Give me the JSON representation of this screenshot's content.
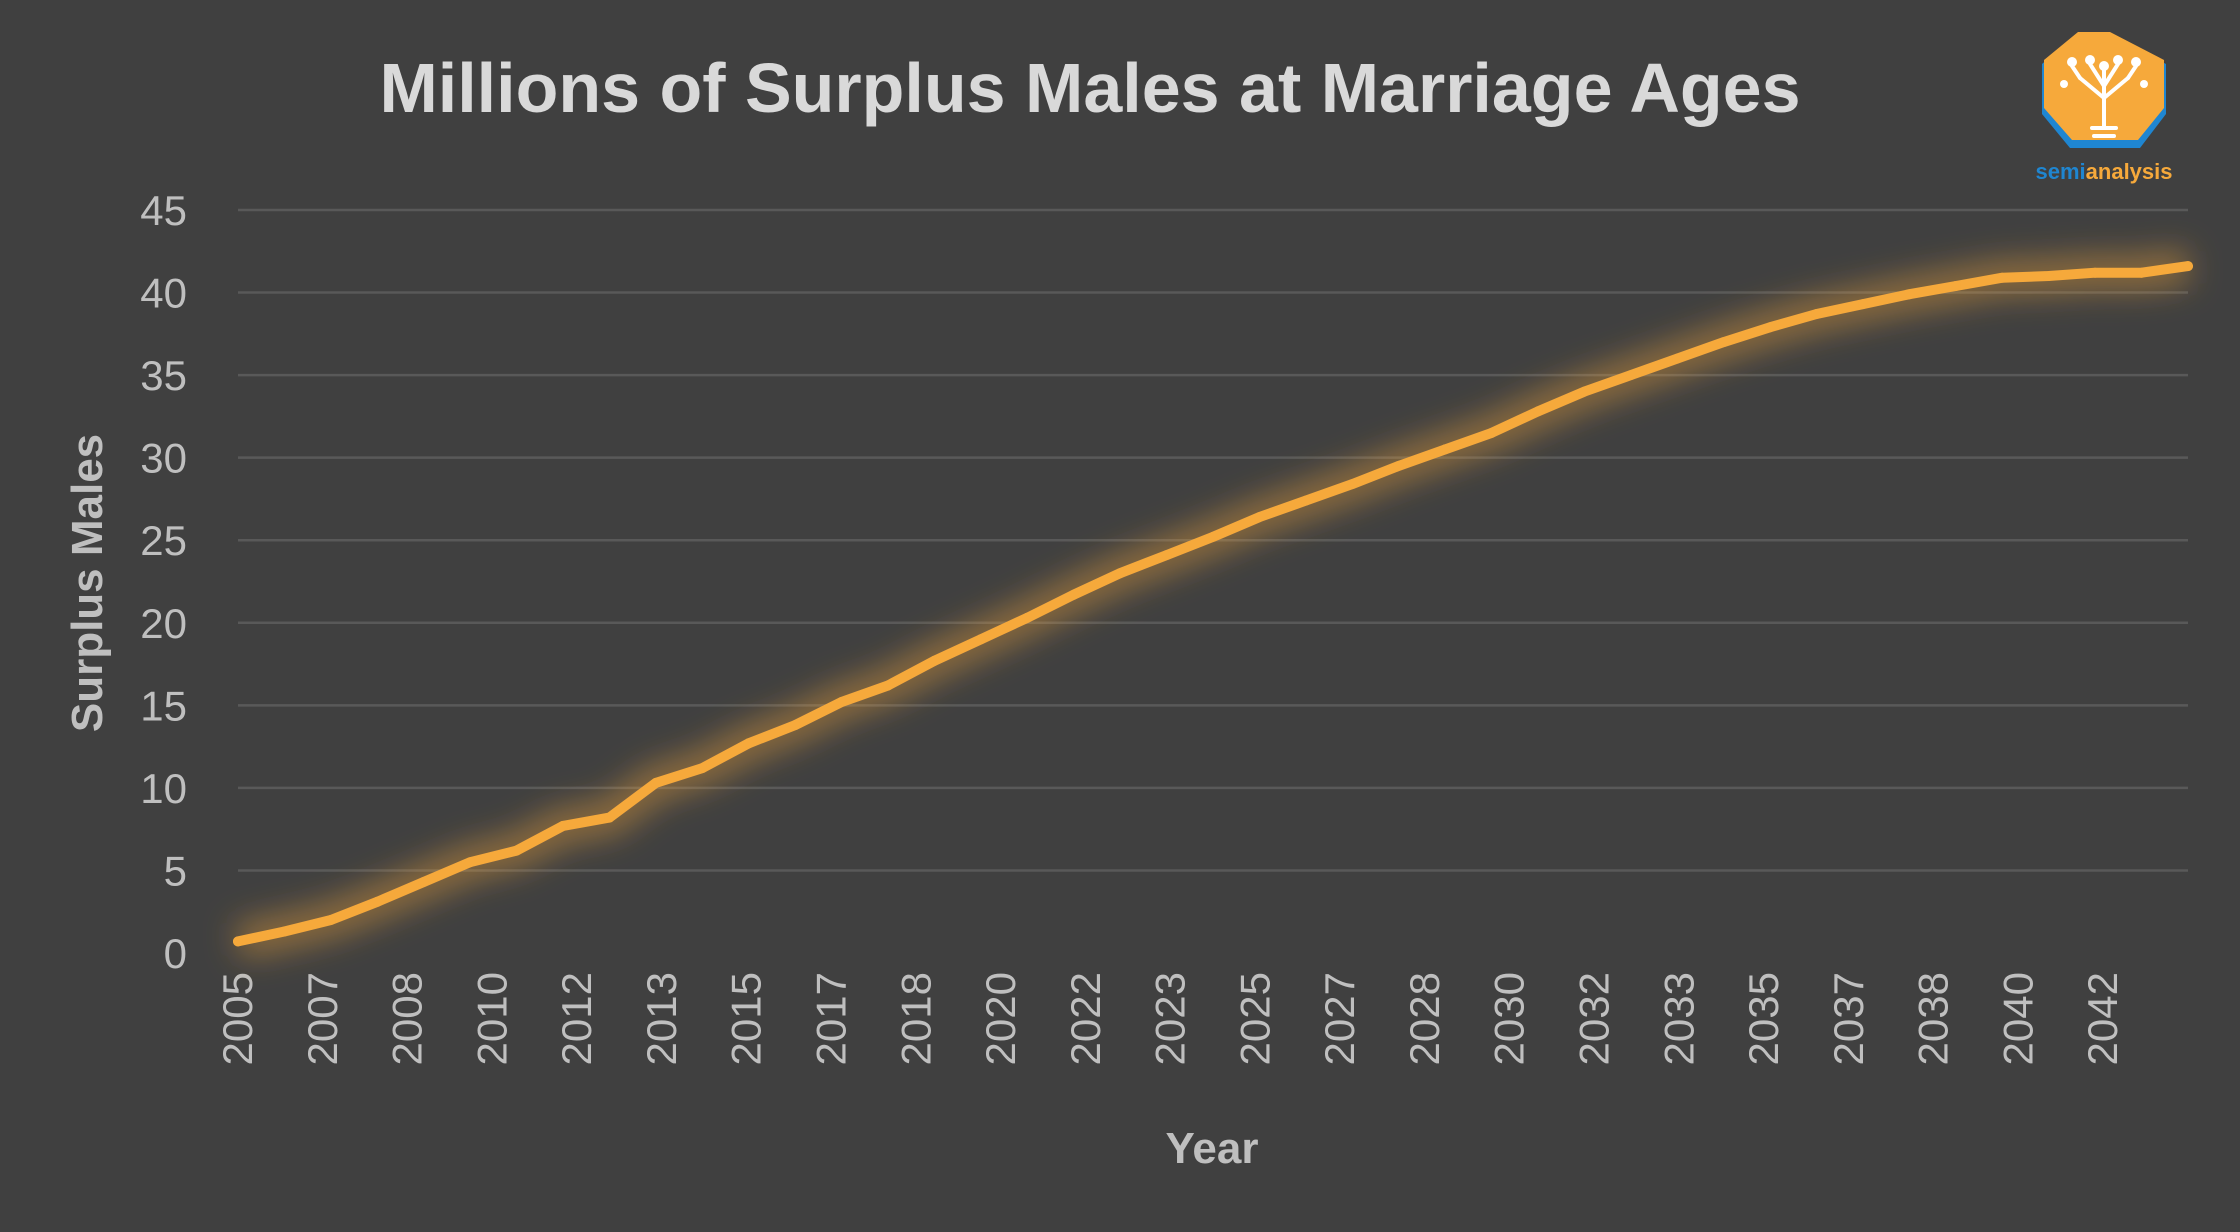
{
  "colors": {
    "background": "#404040",
    "line": "#f6a93b",
    "gridline": "#595959",
    "text": "#bfbfbf",
    "title": "#d9d9d9",
    "logo_orange": "#f6a93b",
    "logo_blue": "#1f86d1"
  },
  "logo": {
    "icon": "tree-circuit-lightbulb-icon",
    "text_part1": "semi",
    "text_part2": "analysis"
  },
  "chart_data": {
    "type": "line",
    "title": "Millions of Surplus Males at Marriage Ages",
    "xlabel": "Year",
    "ylabel": "Surplus Males",
    "ylim": [
      0,
      45
    ],
    "yticks": [
      0,
      5,
      10,
      15,
      20,
      25,
      30,
      35,
      40,
      45
    ],
    "x_tick_labels": [
      "2005",
      "2007",
      "2008",
      "2010",
      "2012",
      "2013",
      "2015",
      "2017",
      "2018",
      "2020",
      "2022",
      "2023",
      "2025",
      "2027",
      "2028",
      "2030",
      "2032",
      "2033",
      "2035",
      "2037",
      "2038",
      "2040",
      "2042"
    ],
    "grid": true,
    "legend": "none",
    "series": [
      {
        "values": [
          0.7,
          1.3,
          2.0,
          3.1,
          4.3,
          5.5,
          6.2,
          7.7,
          8.2,
          10.3,
          11.2,
          12.7,
          13.8,
          15.2,
          16.2,
          17.7,
          19.0,
          20.3,
          21.7,
          23.0,
          24.1,
          25.2,
          26.4,
          27.4,
          28.4,
          29.5,
          30.5,
          31.5,
          32.8,
          34.0,
          35.0,
          36.0,
          37.0,
          37.9,
          38.7,
          39.3,
          39.9,
          40.4,
          40.9,
          41.0,
          41.2,
          41.2,
          41.6
        ],
        "x": [
          2005.0,
          2005.9,
          2006.8,
          2007.7,
          2008.6,
          2009.5,
          2010.4,
          2011.3,
          2012.2,
          2013.1,
          2014.0,
          2014.9,
          2015.8,
          2016.7,
          2017.6,
          2018.5,
          2019.4,
          2020.3,
          2021.2,
          2022.1,
          2023.0,
          2023.9,
          2024.8,
          2025.7,
          2026.6,
          2027.5,
          2028.4,
          2029.3,
          2030.2,
          2031.1,
          2032.0,
          2032.9,
          2033.8,
          2034.7,
          2035.6,
          2036.5,
          2037.4,
          2038.3,
          2039.2,
          2040.1,
          2041.0,
          2041.9,
          2042.8
        ]
      }
    ]
  }
}
